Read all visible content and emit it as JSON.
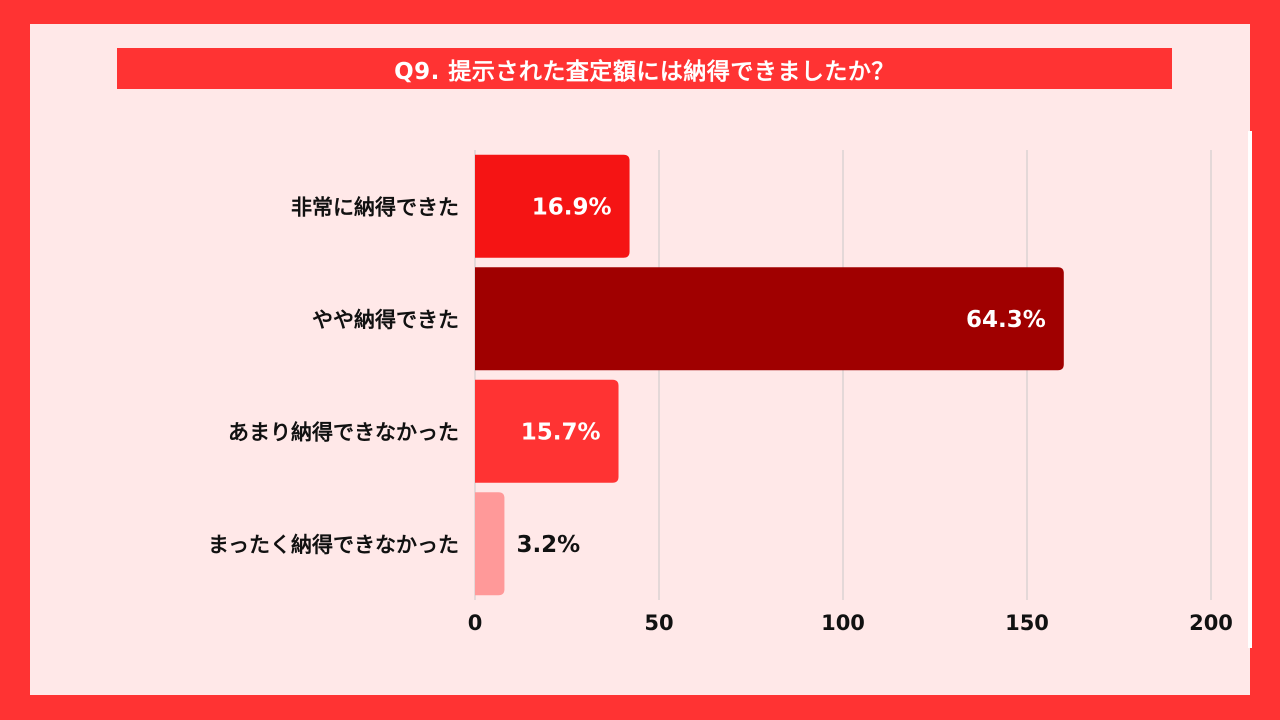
{
  "title": "Q9. 提示された査定額には納得できましたか？",
  "chart_data": {
    "type": "bar",
    "orientation": "horizontal",
    "categories": [
      "非常に納得できた",
      "やや納得できた",
      "あまり納得できなかった",
      "まったく納得できなかった"
    ],
    "values": [
      42,
      160,
      39,
      8
    ],
    "data_labels": [
      "16.9%",
      "64.3%",
      "15.7%",
      "3.2%"
    ],
    "colors": [
      "#f51414",
      "#a00000",
      "#ff3333",
      "#ff9999"
    ],
    "xlim": [
      0,
      200
    ],
    "xticks": [
      0,
      50,
      100,
      150,
      200
    ],
    "grid": true
  }
}
